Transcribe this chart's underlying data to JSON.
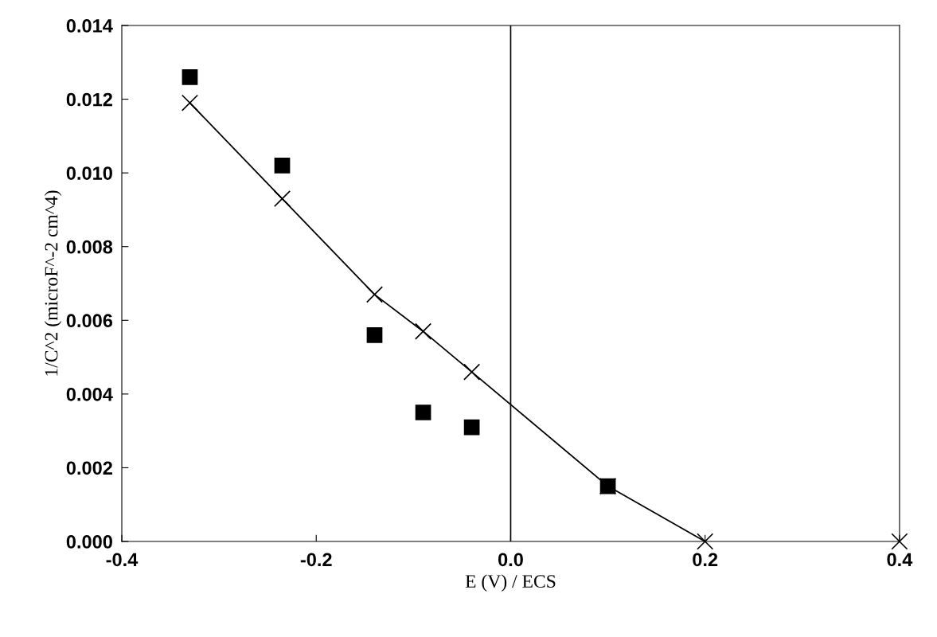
{
  "chart_data": {
    "type": "scatter",
    "xlabel": "E (V) / ECS",
    "ylabel": "1/C^2 (microF^-2 cm^4)",
    "xlim": [
      -0.4,
      0.4
    ],
    "ylim": [
      0,
      0.014
    ],
    "xticks": [
      {
        "value": -0.4,
        "label": "-0.4"
      },
      {
        "value": -0.2,
        "label": "-0.2"
      },
      {
        "value": 0,
        "label": "0.0"
      },
      {
        "value": 0.2,
        "label": "0.2"
      },
      {
        "value": 0.4,
        "label": "0.4"
      }
    ],
    "yticks": [
      {
        "value": 0,
        "label": "0.000"
      },
      {
        "value": 0.002,
        "label": "0.002"
      },
      {
        "value": 0.004,
        "label": "0.004"
      },
      {
        "value": 0.006,
        "label": "0.006"
      },
      {
        "value": 0.008,
        "label": "0.008"
      },
      {
        "value": 0.01,
        "label": "0.010"
      },
      {
        "value": 0.012,
        "label": "0.012"
      },
      {
        "value": 0.014,
        "label": "0.014"
      }
    ],
    "grid": false,
    "legend": false,
    "ref_lines": [
      {
        "axis": "x",
        "value": 0,
        "color": "#000000"
      }
    ],
    "series": [
      {
        "marker": "square",
        "color": "#000000",
        "x": [
          -0.33,
          -0.235,
          -0.14,
          -0.09,
          -0.04,
          0.1
        ],
        "values": [
          0.0126,
          0.0102,
          0.0056,
          0.0035,
          0.0031,
          0.0015
        ]
      },
      {
        "type": "line",
        "marker": "cross",
        "color": "#000000",
        "x": [
          -0.33,
          -0.235,
          -0.14,
          -0.09,
          -0.04,
          0.1,
          0.2
        ],
        "values": [
          0.0119,
          0.0093,
          0.0067,
          0.0057,
          0.0046,
          0.0015,
          0.0
        ]
      },
      {
        "marker": "cross",
        "color": "#000000",
        "x": [
          0.4
        ],
        "values": [
          0.0
        ]
      }
    ]
  }
}
